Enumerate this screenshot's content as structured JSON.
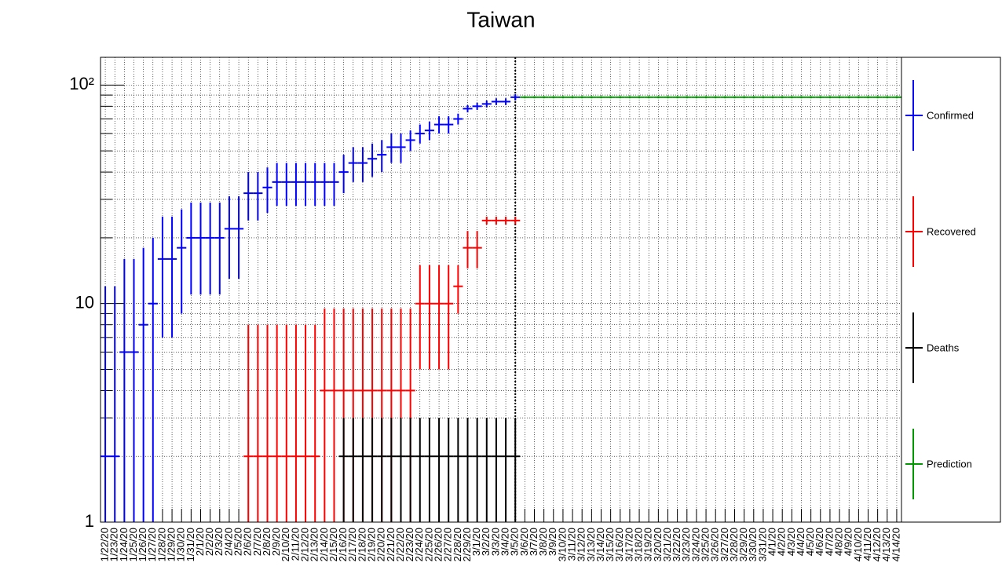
{
  "chart_data": {
    "type": "errorbar",
    "title": "Taiwan",
    "log_y": true,
    "grid": true,
    "legend": "right",
    "categories": [
      "1/22/20",
      "1/23/20",
      "1/24/20",
      "1/25/20",
      "1/26/20",
      "1/27/20",
      "1/28/20",
      "1/29/20",
      "1/30/20",
      "1/31/20",
      "2/1/20",
      "2/2/20",
      "2/3/20",
      "2/4/20",
      "2/5/20",
      "2/6/20",
      "2/7/20",
      "2/8/20",
      "2/9/20",
      "2/10/20",
      "2/11/20",
      "2/12/20",
      "2/13/20",
      "2/14/20",
      "2/15/20",
      "2/16/20",
      "2/17/20",
      "2/18/20",
      "2/19/20",
      "2/20/20",
      "2/21/20",
      "2/22/20",
      "2/23/20",
      "2/24/20",
      "2/25/20",
      "2/26/20",
      "2/27/20",
      "2/28/20",
      "2/29/20",
      "3/1/20",
      "3/2/20",
      "3/3/20",
      "3/4/20",
      "3/5/20",
      "3/6/20",
      "3/7/20",
      "3/8/20",
      "3/9/20",
      "3/10/20",
      "3/11/20",
      "3/12/20",
      "3/13/20",
      "3/14/20",
      "3/15/20",
      "3/16/20",
      "3/17/20",
      "3/18/20",
      "3/19/20",
      "3/20/20",
      "3/21/20",
      "3/22/20",
      "3/23/20",
      "3/24/20",
      "3/25/20",
      "3/26/20",
      "3/27/20",
      "3/28/20",
      "3/29/20",
      "3/30/20",
      "3/31/20",
      "4/1/20",
      "4/2/20",
      "4/3/20",
      "4/4/20",
      "4/5/20",
      "4/6/20",
      "4/7/20",
      "4/8/20",
      "4/9/20",
      "4/10/20",
      "4/11/20",
      "4/12/20",
      "4/13/20",
      "4/14/20"
    ],
    "ylim": [
      1,
      134
    ],
    "yticks": [
      1,
      10,
      {
        "value": 100,
        "label": "10²"
      }
    ],
    "yminorticks": [
      2,
      3,
      4,
      5,
      6,
      7,
      8,
      9,
      20,
      30,
      40,
      50,
      60,
      70,
      80,
      90
    ],
    "series": [
      {
        "name": "Confirmed",
        "color": "#0000ff",
        "values": [
          2,
          2,
          6,
          6,
          8,
          10,
          16,
          16,
          18,
          20,
          20,
          20,
          20,
          22,
          22,
          32,
          32,
          34,
          36,
          36,
          36,
          36,
          36,
          36,
          36,
          40,
          44,
          44,
          46,
          48,
          52,
          52,
          56,
          60,
          62,
          66,
          66,
          70,
          78,
          80,
          82,
          84,
          84,
          88,
          null,
          null,
          null,
          null,
          null,
          null,
          null,
          null,
          null,
          null,
          null,
          null,
          null,
          null,
          null,
          null,
          null,
          null,
          null,
          null,
          null,
          null,
          null,
          null,
          null,
          null,
          null,
          null,
          null,
          null,
          null,
          null,
          null,
          null,
          null,
          null,
          null,
          null,
          null,
          null
        ],
        "errors": [
          10,
          10,
          10,
          10,
          10,
          10,
          9,
          9,
          9,
          9,
          9,
          9,
          9,
          9,
          9,
          8,
          8,
          8,
          8,
          8,
          8,
          8,
          8,
          8,
          8,
          8,
          8,
          8,
          8,
          8,
          8,
          8,
          6,
          6,
          6,
          6,
          6,
          4,
          3,
          3,
          3,
          3,
          3,
          3,
          null,
          null,
          null,
          null,
          null,
          null,
          null,
          null,
          null,
          null,
          null,
          null,
          null,
          null,
          null,
          null,
          null,
          null,
          null,
          null,
          null,
          null,
          null,
          null,
          null,
          null,
          null,
          null,
          null,
          null,
          null,
          null,
          null,
          null,
          null,
          null,
          null,
          null,
          null,
          null
        ]
      },
      {
        "name": "Recovered",
        "color": "#ff0000",
        "values": [
          null,
          null,
          null,
          null,
          null,
          null,
          null,
          null,
          null,
          null,
          null,
          null,
          null,
          null,
          null,
          2,
          2,
          2,
          2,
          2,
          2,
          2,
          2,
          4,
          4,
          4,
          4,
          4,
          4,
          4,
          4,
          4,
          4,
          10,
          10,
          10,
          10,
          12,
          18,
          18,
          24,
          24,
          24,
          24,
          null,
          null,
          null,
          null,
          null,
          null,
          null,
          null,
          null,
          null,
          null,
          null,
          null,
          null,
          null,
          null,
          null,
          null,
          null,
          null,
          null,
          null,
          null,
          null,
          null,
          null,
          null,
          null,
          null,
          null,
          null,
          null,
          null,
          null,
          null,
          null,
          null,
          null,
          null,
          null
        ],
        "errors": [
          null,
          null,
          null,
          null,
          null,
          null,
          null,
          null,
          null,
          null,
          null,
          null,
          null,
          null,
          null,
          6,
          6,
          6,
          6,
          6,
          6,
          6,
          6,
          5.5,
          5.5,
          5.5,
          5.5,
          5.5,
          5.5,
          5.5,
          5.5,
          5.5,
          5.5,
          5,
          5,
          5,
          5,
          3,
          3.5,
          3.5,
          1,
          1,
          1,
          1,
          null,
          null,
          null,
          null,
          null,
          null,
          null,
          null,
          null,
          null,
          null,
          null,
          null,
          null,
          null,
          null,
          null,
          null,
          null,
          null,
          null,
          null,
          null,
          null,
          null,
          null,
          null,
          null,
          null,
          null,
          null,
          null,
          null,
          null,
          null,
          null,
          null,
          null,
          null,
          null
        ]
      },
      {
        "name": "Deaths",
        "color": "#000000",
        "values": [
          null,
          null,
          null,
          null,
          null,
          null,
          null,
          null,
          null,
          null,
          null,
          null,
          null,
          null,
          null,
          null,
          null,
          null,
          null,
          null,
          null,
          null,
          null,
          null,
          null,
          2,
          2,
          2,
          2,
          2,
          2,
          2,
          2,
          2,
          2,
          2,
          2,
          2,
          2,
          2,
          2,
          2,
          2,
          2,
          null,
          null,
          null,
          null,
          null,
          null,
          null,
          null,
          null,
          null,
          null,
          null,
          null,
          null,
          null,
          null,
          null,
          null,
          null,
          null,
          null,
          null,
          null,
          null,
          null,
          null,
          null,
          null,
          null,
          null,
          null,
          null,
          null,
          null,
          null,
          null,
          null,
          null,
          null,
          null
        ],
        "errors": [
          null,
          null,
          null,
          null,
          null,
          null,
          null,
          null,
          null,
          null,
          null,
          null,
          null,
          null,
          null,
          null,
          null,
          null,
          null,
          null,
          null,
          null,
          null,
          null,
          null,
          1,
          1,
          1,
          1,
          1,
          1,
          1,
          1,
          1,
          1,
          1,
          1,
          1,
          1,
          1,
          1,
          1,
          1,
          1,
          null,
          null,
          null,
          null,
          null,
          null,
          null,
          null,
          null,
          null,
          null,
          null,
          null,
          null,
          null,
          null,
          null,
          null,
          null,
          null,
          null,
          null,
          null,
          null,
          null,
          null,
          null,
          null,
          null,
          null,
          null,
          null,
          null,
          null,
          null,
          null,
          null,
          null,
          null,
          null
        ]
      },
      {
        "name": "Prediction",
        "color": "#009900",
        "values": [
          null,
          null,
          null,
          null,
          null,
          null,
          null,
          null,
          null,
          null,
          null,
          null,
          null,
          null,
          null,
          null,
          null,
          null,
          null,
          null,
          null,
          null,
          null,
          null,
          null,
          null,
          null,
          null,
          null,
          null,
          null,
          null,
          null,
          null,
          null,
          null,
          null,
          null,
          null,
          null,
          null,
          null,
          null,
          null,
          88,
          88,
          88,
          88,
          88,
          88,
          88,
          88,
          88,
          88,
          88,
          88,
          88,
          88,
          88,
          88,
          88,
          88,
          88,
          88,
          88,
          88,
          88,
          88,
          88,
          88,
          88,
          88,
          88,
          88,
          88,
          88,
          88,
          88,
          88,
          88,
          88,
          88,
          88,
          88
        ],
        "errors": [
          null,
          null,
          null,
          null,
          null,
          null,
          null,
          null,
          null,
          null,
          null,
          null,
          null,
          null,
          null,
          null,
          null,
          null,
          null,
          null,
          null,
          null,
          null,
          null,
          null,
          null,
          null,
          null,
          null,
          null,
          null,
          null,
          null,
          null,
          null,
          null,
          null,
          null,
          null,
          null,
          null,
          null,
          null,
          null,
          1,
          1,
          1,
          1,
          1,
          1,
          1,
          1,
          1,
          1,
          1,
          1,
          1,
          1,
          1,
          1,
          1,
          1,
          1,
          1,
          1,
          1,
          1,
          1,
          1,
          1,
          1,
          1,
          1,
          1,
          1,
          1,
          1,
          1,
          1,
          1,
          1,
          1,
          1,
          1
        ]
      }
    ]
  }
}
